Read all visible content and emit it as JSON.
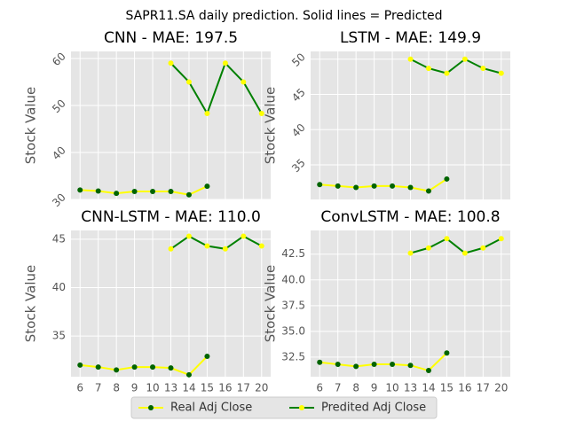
{
  "title": "SAPR11.SA daily prediction. Solid lines = Predicted",
  "legend": "lower center",
  "chart_data": [
    {
      "type": "line",
      "title": "CNN - MAE: 197.5",
      "ylabel": "Stock Value",
      "categories": [
        "6",
        "7",
        "8",
        "9",
        "10",
        "13",
        "14",
        "15",
        "16",
        "17",
        "20"
      ],
      "ylim": [
        30,
        61.5
      ],
      "yticks": [
        30,
        40,
        50,
        60
      ],
      "ytick_rotation": 45,
      "grid": true,
      "series": [
        {
          "name": "Real Adj Close",
          "color": "#ffff00",
          "marker_color": "#006400",
          "values": [
            32,
            31.8,
            31.3,
            31.7,
            31.7,
            31.7,
            31,
            32.8,
            null,
            null,
            null
          ]
        },
        {
          "name": "Predited Adj Close",
          "color": "#008000",
          "marker_color": "#ffff00",
          "values": [
            null,
            null,
            null,
            null,
            null,
            59,
            55,
            48.3,
            59,
            55,
            48.3
          ]
        }
      ]
    },
    {
      "type": "line",
      "title": "LSTM - MAE: 149.9",
      "ylabel": "Stock Value",
      "categories": [
        "6",
        "7",
        "8",
        "9",
        "10",
        "13",
        "14",
        "15",
        "16",
        "17",
        "20"
      ],
      "ylim": [
        30.1,
        51.1
      ],
      "yticks": [
        35,
        40,
        45,
        50
      ],
      "ytick_rotation": 45,
      "grid": true,
      "series": [
        {
          "color": "#ffff00",
          "marker_color": "#006400",
          "values": [
            32.2,
            32,
            31.8,
            32,
            32,
            31.8,
            31.3,
            33,
            null,
            null,
            null
          ]
        },
        {
          "color": "#008000",
          "marker_color": "#ffff00",
          "values": [
            null,
            null,
            null,
            null,
            null,
            50,
            48.7,
            48,
            50,
            48.7,
            48
          ]
        }
      ]
    },
    {
      "type": "line",
      "title": "CNN-LSTM - MAE: 110.0",
      "ylabel": "Stock Value",
      "categories": [
        "6",
        "7",
        "8",
        "9",
        "10",
        "13",
        "14",
        "15",
        "16",
        "17",
        "20"
      ],
      "ylim": [
        30.8,
        45.9
      ],
      "yticks": [
        35,
        40,
        45
      ],
      "ytick_rotation": 0,
      "grid": true,
      "series": [
        {
          "color": "#ffff00",
          "marker_color": "#006400",
          "values": [
            32,
            31.8,
            31.5,
            31.8,
            31.8,
            31.7,
            31,
            32.9,
            null,
            null,
            null
          ]
        },
        {
          "color": "#008000",
          "marker_color": "#ffff00",
          "values": [
            null,
            null,
            null,
            null,
            null,
            44,
            45.3,
            44.3,
            44,
            45.3,
            44.3
          ]
        }
      ]
    },
    {
      "type": "line",
      "title": "ConvLSTM - MAE: 100.8",
      "ylabel": "Stock Value",
      "categories": [
        "6",
        "7",
        "8",
        "9",
        "10",
        "13",
        "14",
        "15",
        "16",
        "17",
        "20"
      ],
      "ylim": [
        30.6,
        44.8
      ],
      "yticks": [
        32.5,
        {
          "value": 35,
          "label": "35.0"
        },
        37.5,
        {
          "value": 40,
          "label": "40.0"
        },
        42.5
      ],
      "ytick_rotation": 0,
      "grid": true,
      "series": [
        {
          "color": "#ffff00",
          "marker_color": "#006400",
          "values": [
            32,
            31.8,
            31.6,
            31.8,
            31.8,
            31.7,
            31.2,
            32.9,
            null,
            null,
            null
          ]
        },
        {
          "color": "#008000",
          "marker_color": "#ffff00",
          "values": [
            null,
            null,
            null,
            null,
            null,
            42.6,
            43.1,
            44,
            42.6,
            43.1,
            44
          ]
        }
      ]
    }
  ]
}
